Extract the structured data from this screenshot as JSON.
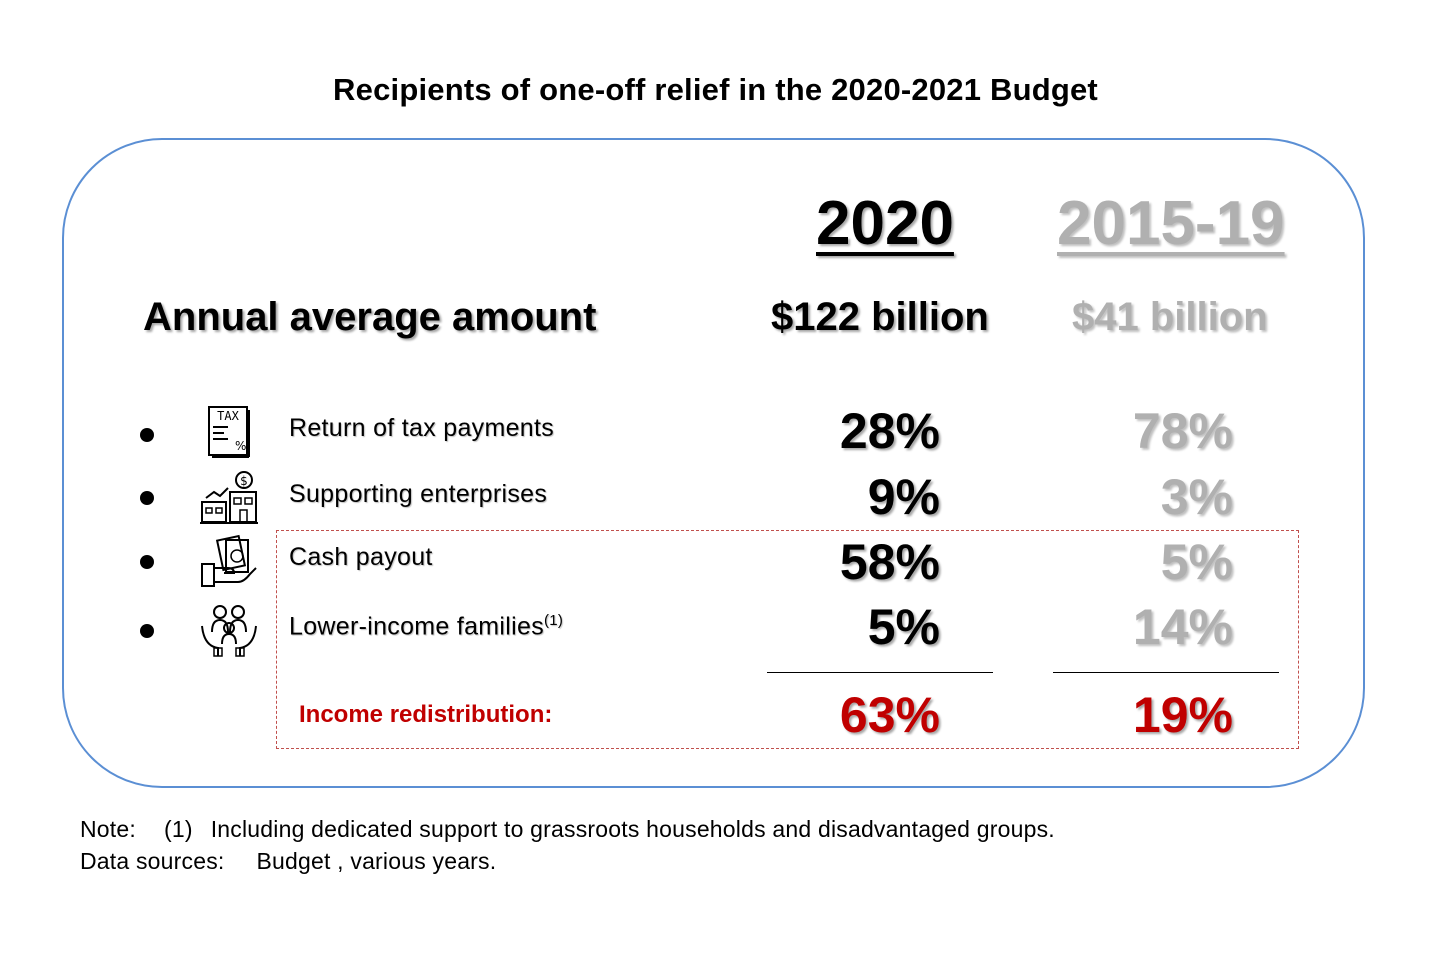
{
  "title": "Recipients of one-off relief in the 2020-2021 Budget",
  "chart_data": {
    "type": "table",
    "columns": [
      "2020",
      "2015-19"
    ],
    "amount_row": {
      "label": "Annual average amount",
      "values": [
        "$122 billion",
        "$41 billion"
      ]
    },
    "rows": [
      {
        "label": "Return of tax payments",
        "icon": "tax-document-icon",
        "values": [
          "28%",
          "78%"
        ],
        "numeric": [
          28,
          78
        ]
      },
      {
        "label": "Supporting enterprises",
        "icon": "enterprise-building-icon",
        "values": [
          "9%",
          "3%"
        ],
        "numeric": [
          9,
          3
        ]
      },
      {
        "label": "Cash payout",
        "icon": "cash-hand-icon",
        "values": [
          "58%",
          "5%"
        ],
        "numeric": [
          58,
          5
        ]
      },
      {
        "label": "Lower-income families",
        "footnote": "(1)",
        "icon": "family-care-icon",
        "values": [
          "5%",
          "14%"
        ],
        "numeric": [
          5,
          14
        ]
      }
    ],
    "total_row": {
      "label": "Income redistribution:",
      "values": [
        "63%",
        "19%"
      ],
      "numeric": [
        63,
        19
      ]
    }
  },
  "colors": {
    "current": "#000000",
    "past": "#b0b0b0",
    "highlight": "#c00000",
    "panel_border": "#5b8fd4",
    "dashed_border": "#c0504d"
  },
  "notes": {
    "note_label": "Note:",
    "note_marker": "(1)",
    "note_text": "Including dedicated support to grassroots households and disadvantaged groups.",
    "sources_label": "Data sources:",
    "sources_text": "Budget , various years."
  }
}
